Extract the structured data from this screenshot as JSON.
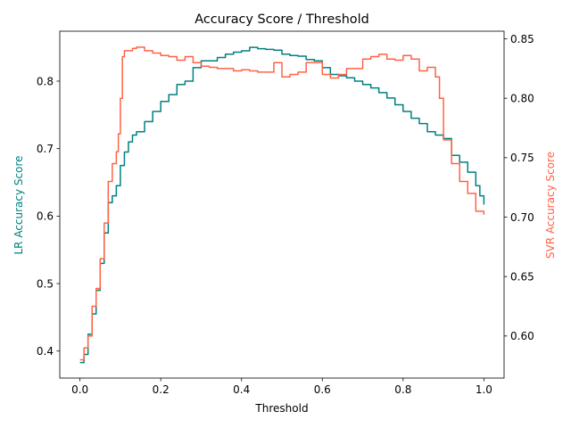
{
  "chart_data": {
    "type": "line",
    "title": "Accuracy Score / Threshold",
    "xlabel": "Threshold",
    "xlim": [
      -0.05,
      1.05
    ],
    "xticks": [
      0.0,
      0.2,
      0.4,
      0.6,
      0.8,
      1.0
    ],
    "xtick_labels": [
      "0.0",
      "0.2",
      "0.4",
      "0.6",
      "0.8",
      "1.0"
    ],
    "grid": false,
    "legend": "none",
    "y_left": {
      "label": "LR Accuracy Score",
      "color": "#008080",
      "ylim": [
        0.36,
        0.874
      ],
      "ticks": [
        0.4,
        0.5,
        0.6,
        0.7,
        0.8
      ],
      "tick_labels": [
        "0.4",
        "0.5",
        "0.6",
        "0.7",
        "0.8"
      ]
    },
    "y_right": {
      "label": "SVR Accuracy Score",
      "color": "#FF6347",
      "ylim": [
        0.5646,
        0.8564
      ],
      "ticks": [
        0.6,
        0.65,
        0.7,
        0.75,
        0.8,
        0.85
      ],
      "tick_labels": [
        "0.60",
        "0.65",
        "0.70",
        "0.75",
        "0.80",
        "0.85"
      ]
    },
    "series": [
      {
        "axis": "left",
        "color": "#008080",
        "x": [
          0.0,
          0.01,
          0.02,
          0.03,
          0.04,
          0.05,
          0.06,
          0.07,
          0.08,
          0.09,
          0.1,
          0.11,
          0.12,
          0.13,
          0.14,
          0.16,
          0.18,
          0.2,
          0.22,
          0.24,
          0.26,
          0.28,
          0.3,
          0.32,
          0.34,
          0.36,
          0.38,
          0.4,
          0.42,
          0.44,
          0.46,
          0.48,
          0.5,
          0.52,
          0.54,
          0.56,
          0.58,
          0.6,
          0.62,
          0.64,
          0.66,
          0.68,
          0.7,
          0.72,
          0.74,
          0.76,
          0.78,
          0.8,
          0.82,
          0.84,
          0.86,
          0.88,
          0.9,
          0.92,
          0.94,
          0.96,
          0.98,
          0.99,
          1.0
        ],
        "y": [
          0.383,
          0.395,
          0.425,
          0.455,
          0.49,
          0.53,
          0.575,
          0.62,
          0.63,
          0.645,
          0.675,
          0.695,
          0.71,
          0.72,
          0.725,
          0.74,
          0.755,
          0.77,
          0.78,
          0.795,
          0.8,
          0.82,
          0.83,
          0.83,
          0.835,
          0.84,
          0.843,
          0.845,
          0.85,
          0.848,
          0.847,
          0.846,
          0.84,
          0.838,
          0.837,
          0.832,
          0.83,
          0.82,
          0.81,
          0.808,
          0.805,
          0.8,
          0.795,
          0.79,
          0.783,
          0.775,
          0.765,
          0.755,
          0.745,
          0.737,
          0.725,
          0.72,
          0.715,
          0.69,
          0.68,
          0.665,
          0.645,
          0.63,
          0.617
        ]
      },
      {
        "axis": "right",
        "color": "#FF6347",
        "x": [
          0.0,
          0.01,
          0.02,
          0.03,
          0.04,
          0.05,
          0.06,
          0.07,
          0.08,
          0.09,
          0.095,
          0.1,
          0.105,
          0.11,
          0.12,
          0.13,
          0.14,
          0.16,
          0.18,
          0.2,
          0.22,
          0.24,
          0.26,
          0.28,
          0.3,
          0.32,
          0.34,
          0.36,
          0.38,
          0.4,
          0.42,
          0.44,
          0.46,
          0.48,
          0.5,
          0.52,
          0.54,
          0.56,
          0.58,
          0.6,
          0.62,
          0.64,
          0.66,
          0.68,
          0.7,
          0.72,
          0.74,
          0.76,
          0.78,
          0.8,
          0.82,
          0.84,
          0.86,
          0.88,
          0.89,
          0.9,
          0.92,
          0.94,
          0.96,
          0.98,
          1.0
        ],
        "y": [
          0.58,
          0.59,
          0.6,
          0.625,
          0.64,
          0.665,
          0.695,
          0.73,
          0.745,
          0.755,
          0.77,
          0.8,
          0.835,
          0.84,
          0.84,
          0.842,
          0.843,
          0.84,
          0.838,
          0.836,
          0.835,
          0.832,
          0.835,
          0.83,
          0.827,
          0.826,
          0.825,
          0.825,
          0.823,
          0.824,
          0.823,
          0.822,
          0.822,
          0.83,
          0.818,
          0.82,
          0.822,
          0.83,
          0.83,
          0.82,
          0.817,
          0.82,
          0.825,
          0.825,
          0.833,
          0.835,
          0.837,
          0.833,
          0.832,
          0.836,
          0.833,
          0.823,
          0.826,
          0.818,
          0.8,
          0.765,
          0.745,
          0.73,
          0.72,
          0.705,
          0.702
        ]
      }
    ]
  }
}
